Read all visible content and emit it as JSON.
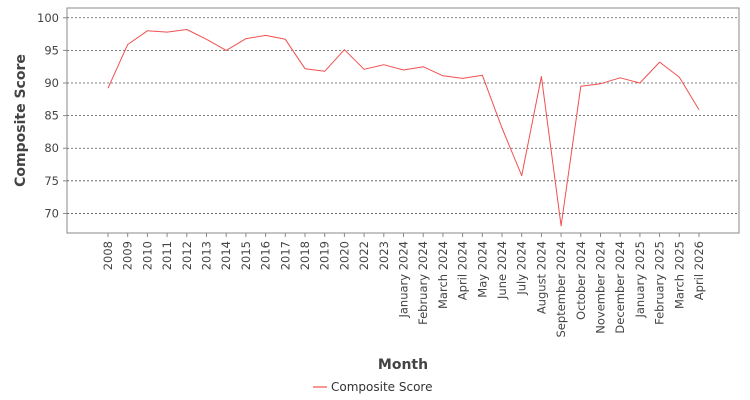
{
  "chart_data": {
    "type": "line",
    "title": "",
    "xlabel": "Month",
    "ylabel": "Composite Score",
    "ylim": [
      67,
      101.5
    ],
    "yticks": [
      70,
      75,
      80,
      85,
      90,
      95,
      100
    ],
    "grid": true,
    "legend_position": "bottom",
    "categories": [
      "2008",
      "2009",
      "2010",
      "2011",
      "2012",
      "2013",
      "2014",
      "2015",
      "2016",
      "2017",
      "2018",
      "2019",
      "2020",
      "2022",
      "2023",
      "January 2024",
      "February 2024",
      "March 2024",
      "April 2024",
      "May 2024",
      "June 2024",
      "July 2024",
      "August 2024",
      "September 2024",
      "October 2024",
      "November 2024",
      "December 2024",
      "January 2025",
      "February 2025",
      "March 2025",
      "April 2026"
    ],
    "series": [
      {
        "name": "Composite Score",
        "color": "#f05050",
        "values": [
          89.2,
          95.9,
          98.0,
          97.8,
          98.2,
          96.7,
          95.0,
          96.8,
          97.3,
          96.7,
          92.2,
          91.8,
          95.1,
          92.1,
          92.8,
          92.0,
          92.5,
          91.1,
          90.7,
          91.2,
          83.1,
          75.8,
          91.0,
          68.1,
          89.5,
          89.9,
          90.8,
          90.0,
          93.2,
          90.9,
          85.9
        ]
      }
    ]
  }
}
